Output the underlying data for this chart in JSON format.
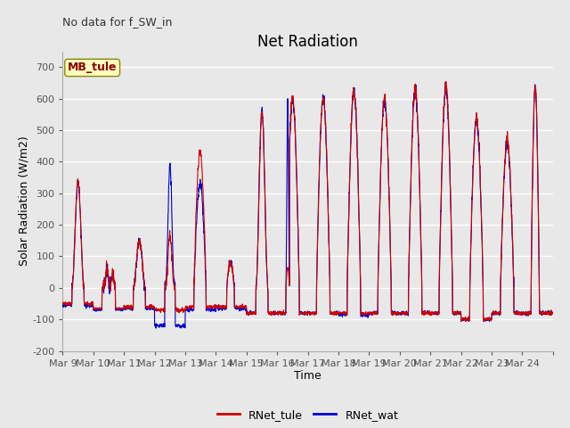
{
  "title": "Net Radiation",
  "xlabel": "Time",
  "ylabel": "Solar Radiation (W/m2)",
  "top_left_text": "No data for f_SW_in",
  "annotation_text": "MB_tule",
  "ylim": [
    -200,
    750
  ],
  "yticks": [
    -200,
    -100,
    0,
    100,
    200,
    300,
    400,
    500,
    600,
    700
  ],
  "xtick_labels": [
    "Mar 9",
    "Mar 10",
    "Mar 11",
    "Mar 12",
    "Mar 13",
    "Mar 14",
    "Mar 15",
    "Mar 16",
    "Mar 17",
    "Mar 18",
    "Mar 19",
    "Mar 20",
    "Mar 21",
    "Mar 22",
    "Mar 23",
    "Mar 24",
    ""
  ],
  "color_tule": "#cc0000",
  "color_wat": "#0000cc",
  "legend_entries": [
    "RNet_tule",
    "RNet_wat"
  ],
  "plot_bg_color": "#e8e8e8",
  "fig_bg_color": "#e8e8e8",
  "grid_color": "#ffffff",
  "title_fontsize": 12,
  "axis_label_fontsize": 9,
  "tick_fontsize": 8,
  "num_days": 16,
  "points_per_day": 144
}
